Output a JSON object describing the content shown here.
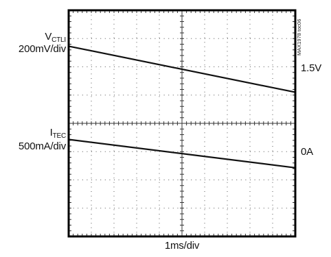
{
  "chart_data": {
    "type": "line",
    "figure_id": "MAX1978 toc06",
    "timebase": "1ms/div",
    "grid": true,
    "divisions": {
      "x": 10,
      "y": 8
    },
    "channels": [
      {
        "name_main": "V",
        "name_sub": "CTLI",
        "scale": "200mV/div",
        "level_label": "1.5V",
        "x_div": [
          0,
          10
        ],
        "y_div": [
          6.73,
          5.1
        ],
        "color": "#111111"
      },
      {
        "name_main": "I",
        "name_sub": "TEC",
        "scale": "500mA/div",
        "level_label": "0A",
        "x_div": [
          0,
          10
        ],
        "y_div": [
          3.43,
          2.43
        ],
        "color": "#111111"
      }
    ]
  }
}
